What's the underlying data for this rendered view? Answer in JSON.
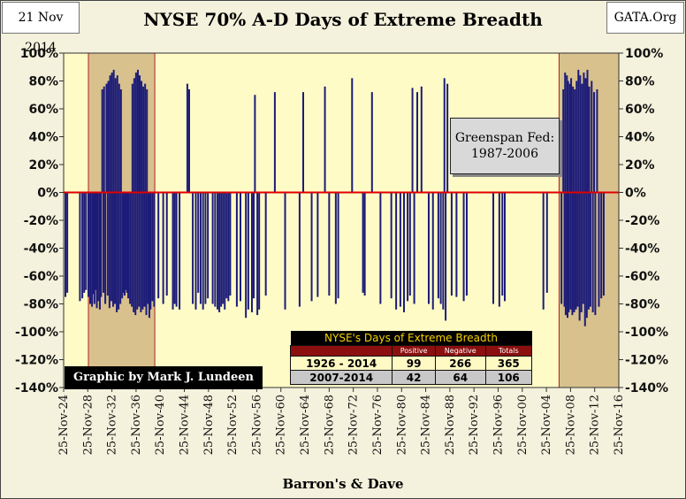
{
  "header": {
    "date": "21 Nov 2014",
    "title": "NYSE 70% A-D Days of Extreme Breadth",
    "site": "GATA.Org"
  },
  "footer": {
    "source": "Barron's & Dave"
  },
  "credit": "Graphic by Mark J. Lundeen",
  "note": "Greenspan Fed: 1987-2006",
  "stats_table": {
    "title": "NYSE's Days of Extreme Breadth",
    "columns": [
      "Positive",
      "Negative",
      "Totals"
    ],
    "rows": [
      {
        "period": "1926 - 2014",
        "positive": "99",
        "negative": "266",
        "totals": "365"
      },
      {
        "period": "2007-2014",
        "positive": "42",
        "negative": "64",
        "totals": "106"
      }
    ]
  },
  "colors": {
    "plot_bg": "#fefbc7",
    "shade": "#d9c18d",
    "shade_border": "#b22222",
    "bar": "#1c1c78",
    "zero_line": "#e00000"
  },
  "chart_data": {
    "type": "bar",
    "title": "NYSE 70% A-D Days of Extreme Breadth",
    "xlabel": "Barron's & Dave",
    "ylabel": "",
    "ylim": [
      -140,
      100
    ],
    "y_ticks": [
      "100%",
      "80%",
      "60%",
      "40%",
      "20%",
      "0%",
      "-20%",
      "-40%",
      "-60%",
      "-80%",
      "-100%",
      "-120%",
      "-140%"
    ],
    "x_ticks": [
      "25-Nov-24",
      "25-Nov-28",
      "25-Nov-32",
      "25-Nov-36",
      "25-Nov-40",
      "25-Nov-44",
      "25-Nov-48",
      "25-Nov-52",
      "25-Nov-56",
      "25-Nov-60",
      "25-Nov-64",
      "25-Nov-68",
      "25-Nov-72",
      "25-Nov-76",
      "25-Nov-80",
      "25-Nov-84",
      "25-Nov-88",
      "25-Nov-92",
      "25-Nov-96",
      "25-Nov-00",
      "25-Nov-04",
      "25-Nov-08",
      "25-Nov-12",
      "25-Nov-16"
    ],
    "x_range_years": [
      1924.9,
      2016.9
    ],
    "shaded_periods": [
      [
        1929.0,
        1940.0
      ],
      [
        2007.0,
        2016.9
      ]
    ],
    "grid": false,
    "legend": "none",
    "series": [
      {
        "values": [
          [
            1925.2,
            -75
          ],
          [
            1925.5,
            -72
          ],
          [
            1927.6,
            -78
          ],
          [
            1928.0,
            -76
          ],
          [
            1928.3,
            -72
          ],
          [
            1928.6,
            -70
          ],
          [
            1929.0,
            -75
          ],
          [
            1929.3,
            -80
          ],
          [
            1929.6,
            -82
          ],
          [
            1929.8,
            -73
          ],
          [
            1930.0,
            -80
          ],
          [
            1930.2,
            -70
          ],
          [
            1930.4,
            -83
          ],
          [
            1930.6,
            -78
          ],
          [
            1930.9,
            -84
          ],
          [
            1931.1,
            -75
          ],
          [
            1931.3,
            74
          ],
          [
            1931.5,
            -72
          ],
          [
            1931.6,
            76
          ],
          [
            1931.8,
            -80
          ],
          [
            1932.0,
            78
          ],
          [
            1932.2,
            -74
          ],
          [
            1932.3,
            80
          ],
          [
            1932.5,
            -83
          ],
          [
            1932.6,
            84
          ],
          [
            1932.8,
            -78
          ],
          [
            1932.9,
            86
          ],
          [
            1933.1,
            -82
          ],
          [
            1933.2,
            88
          ],
          [
            1933.4,
            -80
          ],
          [
            1933.5,
            82
          ],
          [
            1933.7,
            -86
          ],
          [
            1933.8,
            84
          ],
          [
            1934.0,
            -84
          ],
          [
            1934.1,
            78
          ],
          [
            1934.3,
            -80
          ],
          [
            1934.4,
            74
          ],
          [
            1934.6,
            -76
          ],
          [
            1934.8,
            -72
          ],
          [
            1935.0,
            -74
          ],
          [
            1935.2,
            -70
          ],
          [
            1935.4,
            -72
          ],
          [
            1935.6,
            -76
          ],
          [
            1935.9,
            -80
          ],
          [
            1936.2,
            -82
          ],
          [
            1936.3,
            78
          ],
          [
            1936.5,
            -86
          ],
          [
            1936.6,
            82
          ],
          [
            1936.8,
            -88
          ],
          [
            1936.9,
            86
          ],
          [
            1937.1,
            -84
          ],
          [
            1937.2,
            88
          ],
          [
            1937.4,
            -82
          ],
          [
            1937.5,
            84
          ],
          [
            1937.7,
            -86
          ],
          [
            1937.8,
            80
          ],
          [
            1938.0,
            -84
          ],
          [
            1938.1,
            76
          ],
          [
            1938.3,
            -82
          ],
          [
            1938.4,
            78
          ],
          [
            1938.6,
            -88
          ],
          [
            1938.7,
            74
          ],
          [
            1938.9,
            -80
          ],
          [
            1939.1,
            -90
          ],
          [
            1939.3,
            -84
          ],
          [
            1939.6,
            -78
          ],
          [
            1939.9,
            -82
          ],
          [
            1940.6,
            -76
          ],
          [
            1941.4,
            -80
          ],
          [
            1942.0,
            -74
          ],
          [
            1943.0,
            -84
          ],
          [
            1943.3,
            -80
          ],
          [
            1943.6,
            -82
          ],
          [
            1944.1,
            -84
          ],
          [
            1945.4,
            78
          ],
          [
            1945.7,
            74
          ],
          [
            1946.3,
            -80
          ],
          [
            1946.8,
            -84
          ],
          [
            1947.2,
            -72
          ],
          [
            1947.6,
            -80
          ],
          [
            1948.0,
            -84
          ],
          [
            1948.4,
            -80
          ],
          [
            1948.8,
            -76
          ],
          [
            1949.6,
            -80
          ],
          [
            1950.0,
            -82
          ],
          [
            1950.4,
            -84
          ],
          [
            1950.7,
            -86
          ],
          [
            1951.0,
            -82
          ],
          [
            1951.3,
            -80
          ],
          [
            1951.6,
            -84
          ],
          [
            1951.9,
            -76
          ],
          [
            1952.2,
            -78
          ],
          [
            1952.5,
            -74
          ],
          [
            1953.6,
            -82
          ],
          [
            1954.2,
            -78
          ],
          [
            1955.1,
            -90
          ],
          [
            1955.5,
            -84
          ],
          [
            1956.1,
            -86
          ],
          [
            1956.4,
            -76
          ],
          [
            1956.6,
            70
          ],
          [
            1957.0,
            -88
          ],
          [
            1957.3,
            -84
          ],
          [
            1958.4,
            -74
          ],
          [
            1959.9,
            72
          ],
          [
            1961.6,
            -84
          ],
          [
            1964.0,
            -82
          ],
          [
            1964.6,
            72
          ],
          [
            1966.0,
            -78
          ],
          [
            1967.0,
            -75
          ],
          [
            1968.2,
            76
          ],
          [
            1968.9,
            -74
          ],
          [
            1970.0,
            -80
          ],
          [
            1970.4,
            -76
          ],
          [
            1972.7,
            82
          ],
          [
            1974.5,
            -72
          ],
          [
            1974.8,
            -74
          ],
          [
            1976.0,
            72
          ],
          [
            1977.4,
            -80
          ],
          [
            1979.2,
            -76
          ],
          [
            1980.0,
            -84
          ],
          [
            1980.7,
            -82
          ],
          [
            1981.3,
            -86
          ],
          [
            1981.9,
            -78
          ],
          [
            1982.3,
            -74
          ],
          [
            1982.7,
            75
          ],
          [
            1983.0,
            -80
          ],
          [
            1983.5,
            72
          ],
          [
            1984.2,
            76
          ],
          [
            1985.4,
            -80
          ],
          [
            1986.1,
            -84
          ],
          [
            1987.0,
            -76
          ],
          [
            1987.4,
            -80
          ],
          [
            1987.8,
            -84
          ],
          [
            1988.0,
            82
          ],
          [
            1988.2,
            -92
          ],
          [
            1988.5,
            78
          ],
          [
            1989.2,
            -74
          ],
          [
            1990.0,
            -75
          ],
          [
            1991.2,
            -78
          ],
          [
            1991.7,
            -74
          ],
          [
            1996.1,
            -80
          ],
          [
            1997.1,
            -82
          ],
          [
            1997.6,
            -74
          ],
          [
            1998.0,
            -78
          ],
          [
            2004.4,
            -84
          ],
          [
            2005.0,
            -72
          ],
          [
            2007.4,
            -80
          ],
          [
            2007.7,
            74
          ],
          [
            2007.9,
            -82
          ],
          [
            2008.0,
            86
          ],
          [
            2008.1,
            -88
          ],
          [
            2008.3,
            84
          ],
          [
            2008.4,
            -90
          ],
          [
            2008.5,
            80
          ],
          [
            2008.6,
            -86
          ],
          [
            2008.8,
            78
          ],
          [
            2008.9,
            -84
          ],
          [
            2009.0,
            82
          ],
          [
            2009.2,
            -88
          ],
          [
            2009.3,
            76
          ],
          [
            2009.5,
            -86
          ],
          [
            2009.6,
            74
          ],
          [
            2009.8,
            -84
          ],
          [
            2009.9,
            80
          ],
          [
            2010.1,
            -82
          ],
          [
            2010.2,
            88
          ],
          [
            2010.4,
            -92
          ],
          [
            2010.5,
            84
          ],
          [
            2010.7,
            -86
          ],
          [
            2010.8,
            78
          ],
          [
            2011.0,
            -80
          ],
          [
            2011.1,
            86
          ],
          [
            2011.3,
            -96
          ],
          [
            2011.4,
            82
          ],
          [
            2011.6,
            -90
          ],
          [
            2011.7,
            88
          ],
          [
            2011.9,
            -84
          ],
          [
            2012.0,
            76
          ],
          [
            2012.2,
            -82
          ],
          [
            2012.4,
            80
          ],
          [
            2012.6,
            -86
          ],
          [
            2012.8,
            72
          ],
          [
            2013.0,
            -88
          ],
          [
            2013.3,
            74
          ],
          [
            2013.6,
            -82
          ],
          [
            2014.0,
            -76
          ],
          [
            2014.4,
            -74
          ]
        ]
      }
    ]
  }
}
